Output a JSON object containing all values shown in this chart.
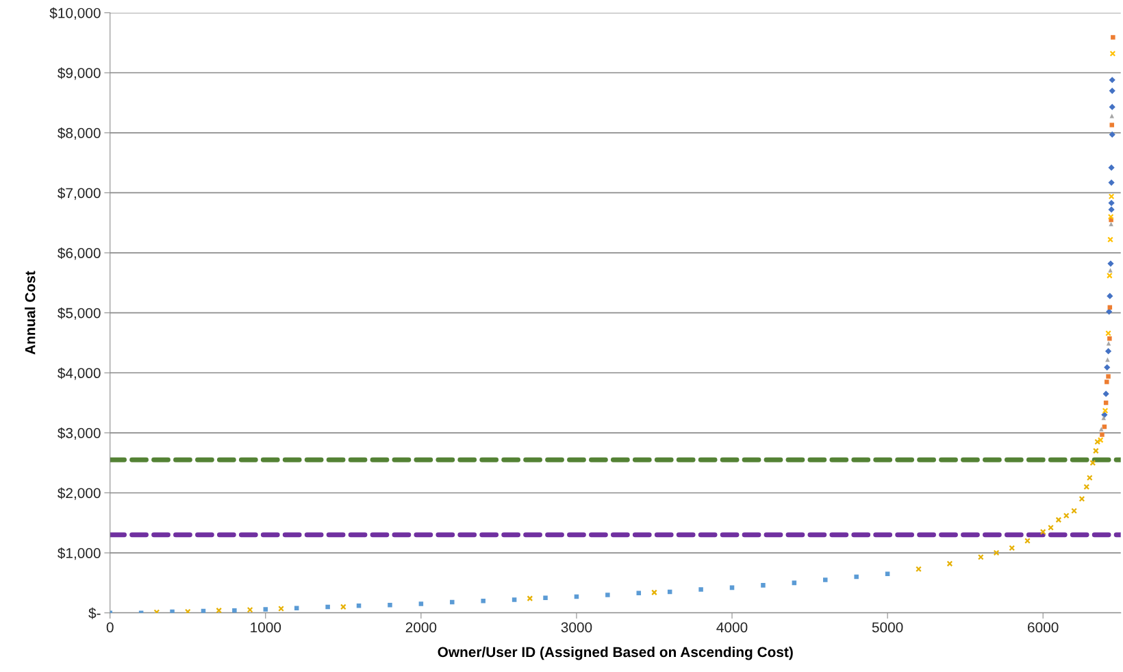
{
  "chart_data": {
    "type": "scatter",
    "xlabel": "Owner/User ID (Assigned Based on Ascending Cost)",
    "ylabel": "Annual Cost",
    "xlim": [
      0,
      6500
    ],
    "xticks": [
      0,
      1000,
      2000,
      3000,
      4000,
      5000,
      6000
    ],
    "ylim": [
      0,
      10000
    ],
    "yticks": [
      {
        "value": 0,
        "label": "$-"
      },
      {
        "value": 1000,
        "label": "$1,000"
      },
      {
        "value": 2000,
        "label": "$2,000"
      },
      {
        "value": 3000,
        "label": "$3,000"
      },
      {
        "value": 4000,
        "label": "$4,000"
      },
      {
        "value": 5000,
        "label": "$5,000"
      },
      {
        "value": 6000,
        "label": "$6,000"
      },
      {
        "value": 7000,
        "label": "$7,000"
      },
      {
        "value": 8000,
        "label": "$8,000"
      },
      {
        "value": 9000,
        "label": "$9,000"
      },
      {
        "value": 10000,
        "label": "$10,000"
      }
    ],
    "grid": "y",
    "legend": false,
    "ref_lines": [
      {
        "axis": "y",
        "value": 2550,
        "color": "#548235",
        "line_style": "dashed"
      },
      {
        "axis": "y",
        "value": 1300,
        "color": "#7030a0",
        "line_style": "dashed"
      }
    ],
    "series": [
      {
        "color": "#e6b000",
        "marker": "cross",
        "x": [
          300,
          500,
          700,
          900,
          1100,
          1500,
          2700,
          3500,
          5200,
          5400,
          5600,
          5700,
          5800,
          5900,
          6000,
          6050,
          6100,
          6150,
          6200,
          6250,
          6280,
          6300,
          6320,
          6340,
          6350
        ],
        "values": [
          10,
          20,
          40,
          50,
          70,
          100,
          240,
          340,
          730,
          820,
          930,
          1000,
          1080,
          1200,
          1350,
          1420,
          1550,
          1620,
          1700,
          1900,
          2100,
          2250,
          2500,
          2700,
          2850
        ]
      },
      {
        "color": "#5b9bd5",
        "marker": "square",
        "x": [
          0,
          200,
          400,
          600,
          800,
          1000,
          1200,
          1400,
          1600,
          1800,
          2000,
          2200,
          2400,
          2600,
          2800,
          3000,
          3200,
          3400,
          3600,
          3800,
          4000,
          4200,
          4400,
          4600,
          4800,
          5000
        ],
        "values": [
          0,
          0,
          20,
          30,
          40,
          60,
          80,
          100,
          120,
          130,
          150,
          180,
          200,
          220,
          250,
          270,
          300,
          330,
          350,
          390,
          420,
          460,
          500,
          550,
          600,
          650
        ]
      },
      {
        "color": "#4472c4",
        "marker": "diamond",
        "x": [
          6445,
          6445,
          6445,
          6445,
          6440,
          6440,
          6440,
          6440,
          6435,
          6430,
          6425,
          6420,
          6412,
          6405,
          6395
        ],
        "values": [
          8880,
          8700,
          8430,
          7970,
          7420,
          7170,
          6830,
          6720,
          5820,
          5280,
          5020,
          4360,
          4090,
          3650,
          3300
        ]
      },
      {
        "color": "#ed7d31",
        "marker": "square",
        "x": [
          6450,
          6443,
          6438,
          6430,
          6428,
          6420,
          6410,
          6405,
          6395,
          6380
        ],
        "values": [
          9590,
          8130,
          6550,
          5090,
          4570,
          3940,
          3850,
          3500,
          3100,
          2970
        ]
      },
      {
        "color": "#a5a5a5",
        "marker": "triangle",
        "x": [
          6443,
          6438,
          6433,
          6422,
          6415,
          6390,
          6375
        ],
        "values": [
          8280,
          6480,
          5710,
          4490,
          4220,
          3250,
          3060
        ]
      },
      {
        "color": "#ffc000",
        "marker": "cross",
        "x": [
          6448,
          6440,
          6436,
          6433,
          6428,
          6420,
          6400,
          6370
        ],
        "values": [
          9320,
          6940,
          6600,
          6220,
          5620,
          4660,
          3370,
          2880
        ]
      }
    ]
  }
}
